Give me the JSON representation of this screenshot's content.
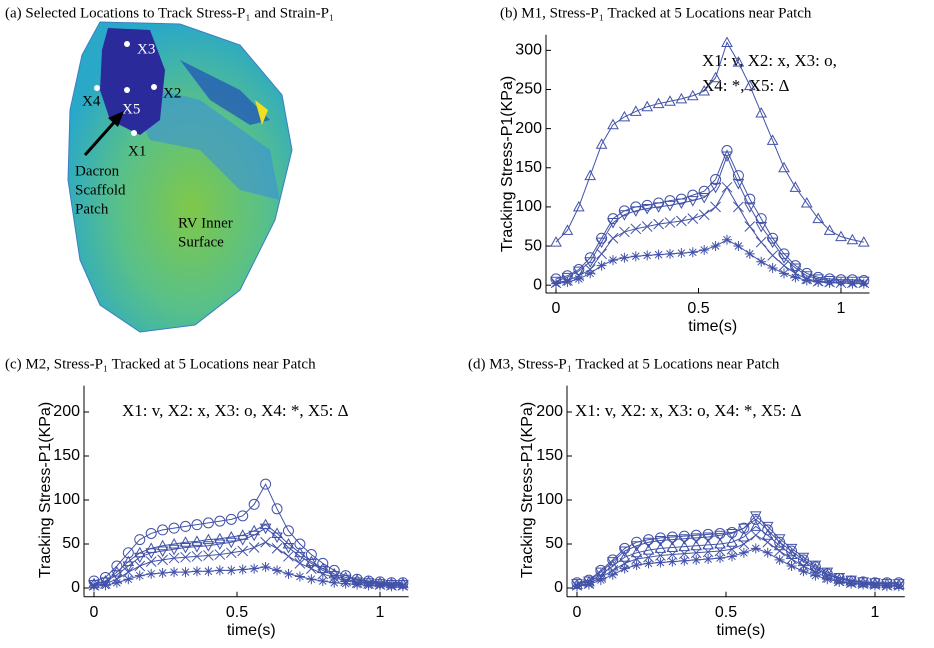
{
  "image_panel": {
    "title": "(a) Selected Locations to Track Stress-P₁ and Strain-P₁",
    "points": [
      "X3",
      "X2",
      "X4",
      "X5",
      "X1"
    ],
    "patch_label": [
      "Dacron",
      "Scaffold",
      "Patch"
    ],
    "surface_label": [
      "RV Inner",
      "Surface"
    ]
  },
  "chart_data": [
    {
      "type": "line",
      "title": "(b) M1, Stress-P₁ Tracked at 5 Locations near Patch",
      "x_label": "time(s)",
      "y_label": "Tracking Stress-P1(KPa)",
      "annotation": [
        "X1: v, X2: x, X3: o,",
        "X4: *, X5: Δ"
      ],
      "xlim": [
        0,
        1.1
      ],
      "xticks": [
        0,
        0.5,
        1
      ],
      "ylim": [
        -10,
        320
      ],
      "yticks": [
        0,
        50,
        100,
        150,
        200,
        250,
        300
      ],
      "grid": false,
      "x": [
        0,
        0.04,
        0.08,
        0.12,
        0.16,
        0.2,
        0.24,
        0.28,
        0.32,
        0.36,
        0.4,
        0.44,
        0.48,
        0.52,
        0.56,
        0.6,
        0.64,
        0.68,
        0.72,
        0.76,
        0.8,
        0.84,
        0.88,
        0.92,
        0.96,
        1.0,
        1.04,
        1.08
      ],
      "series": [
        {
          "marker": "v",
          "color": "#4252a8",
          "values": [
            5,
            10,
            18,
            30,
            55,
            80,
            90,
            95,
            98,
            100,
            102,
            105,
            108,
            112,
            125,
            165,
            130,
            100,
            75,
            55,
            35,
            22,
            12,
            8,
            6,
            5,
            5,
            5
          ]
        },
        {
          "marker": "x",
          "color": "#4252a8",
          "values": [
            3,
            6,
            12,
            20,
            40,
            60,
            68,
            72,
            75,
            78,
            80,
            82,
            85,
            90,
            100,
            125,
            100,
            75,
            55,
            38,
            25,
            15,
            8,
            5,
            4,
            3,
            3,
            3
          ]
        },
        {
          "marker": "o",
          "color": "#4252a8",
          "values": [
            8,
            12,
            20,
            35,
            60,
            85,
            95,
            100,
            102,
            105,
            108,
            110,
            115,
            120,
            135,
            172,
            140,
            110,
            85,
            60,
            40,
            25,
            15,
            10,
            8,
            7,
            7,
            6
          ]
        },
        {
          "marker": "*",
          "color": "#4252a8",
          "values": [
            2,
            4,
            8,
            15,
            25,
            32,
            35,
            37,
            38,
            39,
            40,
            41,
            42,
            45,
            50,
            58,
            50,
            40,
            30,
            22,
            15,
            10,
            6,
            4,
            3,
            3,
            2,
            2
          ]
        },
        {
          "marker": "^",
          "color": "#4252a8",
          "values": [
            55,
            70,
            100,
            140,
            180,
            205,
            215,
            222,
            228,
            232,
            235,
            238,
            242,
            248,
            265,
            310,
            285,
            255,
            220,
            185,
            150,
            125,
            105,
            85,
            70,
            62,
            58,
            55
          ]
        }
      ]
    },
    {
      "type": "line",
      "title": "(c) M2, Stress-P₁ Tracked at 5 Locations near Patch",
      "x_label": "time(s)",
      "y_label": "Tracking Stress-P1(KPa)",
      "annotation": [
        "X1: v, X2: x,  X3: o, X4: *, X5: Δ"
      ],
      "xlim": [
        0,
        1.1
      ],
      "xticks": [
        0,
        0.5,
        1
      ],
      "ylim": [
        -10,
        230
      ],
      "yticks": [
        0,
        50,
        100,
        150,
        200
      ],
      "grid": false,
      "x": [
        0,
        0.04,
        0.08,
        0.12,
        0.16,
        0.2,
        0.24,
        0.28,
        0.32,
        0.36,
        0.4,
        0.44,
        0.48,
        0.52,
        0.56,
        0.6,
        0.64,
        0.68,
        0.72,
        0.76,
        0.8,
        0.84,
        0.88,
        0.92,
        0.96,
        1.0,
        1.04,
        1.08
      ],
      "series": [
        {
          "marker": "v",
          "color": "#4252a8",
          "values": [
            4,
            7,
            15,
            25,
            35,
            40,
            42,
            44,
            46,
            47,
            48,
            50,
            52,
            55,
            60,
            68,
            58,
            46,
            36,
            28,
            20,
            14,
            10,
            7,
            6,
            5,
            4,
            4
          ]
        },
        {
          "marker": "x",
          "color": "#4252a8",
          "values": [
            3,
            5,
            10,
            18,
            25,
            30,
            32,
            34,
            35,
            36,
            37,
            38,
            40,
            42,
            46,
            52,
            45,
            36,
            28,
            22,
            16,
            12,
            8,
            6,
            5,
            4,
            3,
            3
          ]
        },
        {
          "marker": "o",
          "color": "#4252a8",
          "values": [
            8,
            12,
            25,
            40,
            55,
            62,
            66,
            68,
            70,
            72,
            74,
            76,
            78,
            82,
            95,
            118,
            90,
            65,
            50,
            38,
            28,
            20,
            14,
            10,
            8,
            7,
            6,
            6
          ]
        },
        {
          "marker": "*",
          "color": "#4252a8",
          "values": [
            2,
            3,
            6,
            10,
            14,
            16,
            17,
            18,
            18,
            19,
            19,
            20,
            20,
            21,
            22,
            24,
            20,
            16,
            13,
            10,
            8,
            6,
            5,
            4,
            3,
            3,
            2,
            2
          ]
        },
        {
          "marker": "^",
          "color": "#4252a8",
          "values": [
            5,
            8,
            18,
            30,
            40,
            45,
            48,
            50,
            52,
            53,
            55,
            56,
            58,
            60,
            65,
            72,
            62,
            50,
            40,
            30,
            22,
            16,
            12,
            9,
            7,
            6,
            5,
            5
          ]
        }
      ]
    },
    {
      "type": "line",
      "title": "(d) M3, Stress-P₁ Tracked at 5 Locations near Patch",
      "x_label": "time(s)",
      "y_label": "Tracking Stress-P1(KPa)",
      "annotation": [
        "X1: v, X2: x,  X3: o, X4: *, X5: Δ"
      ],
      "xlim": [
        0,
        1.1
      ],
      "xticks": [
        0,
        0.5,
        1
      ],
      "ylim": [
        -10,
        230
      ],
      "yticks": [
        0,
        50,
        100,
        150,
        200
      ],
      "grid": false,
      "x": [
        0,
        0.04,
        0.08,
        0.12,
        0.16,
        0.2,
        0.24,
        0.28,
        0.32,
        0.36,
        0.4,
        0.44,
        0.48,
        0.52,
        0.56,
        0.6,
        0.64,
        0.68,
        0.72,
        0.76,
        0.8,
        0.84,
        0.88,
        0.92,
        0.96,
        1.0,
        1.04,
        1.08
      ],
      "series": [
        {
          "marker": "v",
          "color": "#4252a8",
          "values": [
            5,
            8,
            18,
            30,
            42,
            48,
            52,
            54,
            55,
            56,
            57,
            58,
            60,
            62,
            68,
            82,
            70,
            56,
            45,
            35,
            26,
            18,
            12,
            9,
            7,
            6,
            5,
            5
          ]
        },
        {
          "marker": "x",
          "color": "#4252a8",
          "values": [
            3,
            5,
            12,
            20,
            28,
            33,
            35,
            37,
            38,
            39,
            40,
            41,
            42,
            44,
            50,
            60,
            52,
            42,
            33,
            25,
            18,
            12,
            8,
            6,
            5,
            4,
            3,
            3
          ]
        },
        {
          "marker": "o",
          "color": "#4252a8",
          "values": [
            6,
            9,
            20,
            32,
            45,
            52,
            55,
            57,
            58,
            59,
            60,
            61,
            62,
            63,
            68,
            78,
            66,
            52,
            42,
            32,
            24,
            16,
            11,
            8,
            7,
            6,
            6,
            6
          ]
        },
        {
          "marker": "*",
          "color": "#4252a8",
          "values": [
            2,
            4,
            9,
            15,
            22,
            26,
            28,
            29,
            30,
            31,
            32,
            33,
            34,
            36,
            40,
            45,
            40,
            32,
            25,
            19,
            14,
            10,
            7,
            5,
            4,
            3,
            2,
            2
          ]
        },
        {
          "marker": "^",
          "color": "#4252a8",
          "values": [
            4,
            7,
            15,
            25,
            35,
            40,
            43,
            45,
            46,
            47,
            48,
            49,
            50,
            52,
            58,
            70,
            60,
            48,
            38,
            30,
            22,
            15,
            10,
            8,
            6,
            5,
            5,
            4
          ]
        }
      ]
    }
  ]
}
